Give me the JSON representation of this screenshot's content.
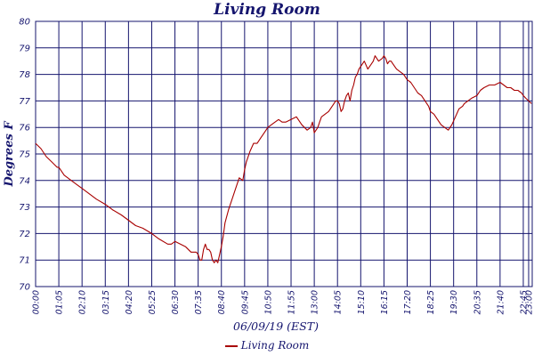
{
  "chart_data": {
    "type": "line",
    "title": "Living Room",
    "xlabel": "06/09/19 (EST)",
    "ylabel": "Degrees F",
    "ylim": [
      70,
      80
    ],
    "y_ticks": [
      "70",
      "71",
      "72",
      "73",
      "74",
      "75",
      "76",
      "77",
      "78",
      "79",
      "80"
    ],
    "x_tick_labels": [
      "00:00",
      "01:05",
      "02:10",
      "03:15",
      "04:20",
      "05:25",
      "06:30",
      "07:35",
      "08:40",
      "09:45",
      "10:50",
      "11:55",
      "13:00",
      "14:05",
      "15:10",
      "16:15",
      "17:20",
      "18:25",
      "19:30",
      "20:35",
      "21:40",
      "22:45",
      "23:00"
    ],
    "x_tick_minutes": [
      0,
      65,
      130,
      195,
      260,
      325,
      390,
      455,
      520,
      585,
      650,
      715,
      780,
      845,
      910,
      975,
      1040,
      1105,
      1170,
      1235,
      1300,
      1365,
      1380
    ],
    "x_range_minutes": [
      0,
      1390
    ],
    "grid": true,
    "legend_position": "bottom-center",
    "colors": {
      "series": "#a80000",
      "grid": "#15156e",
      "text": "#15156e"
    },
    "series": [
      {
        "name": "Living Room",
        "x_minutes": [
          0,
          15,
          30,
          45,
          60,
          65,
          80,
          100,
          120,
          130,
          150,
          170,
          195,
          215,
          240,
          260,
          280,
          300,
          325,
          345,
          370,
          380,
          390,
          405,
          420,
          435,
          450,
          455,
          460,
          465,
          470,
          475,
          480,
          485,
          490,
          495,
          500,
          505,
          510,
          515,
          520,
          525,
          530,
          540,
          550,
          560,
          570,
          580,
          585,
          590,
          600,
          610,
          615,
          620,
          630,
          640,
          650,
          660,
          670,
          680,
          690,
          700,
          715,
          730,
          745,
          760,
          770,
          775,
          780,
          785,
          790,
          795,
          800,
          810,
          820,
          830,
          840,
          845,
          850,
          855,
          860,
          865,
          870,
          875,
          880,
          885,
          890,
          895,
          900,
          905,
          910,
          915,
          920,
          930,
          940,
          945,
          950,
          955,
          960,
          970,
          975,
          980,
          985,
          990,
          995,
          1000,
          1010,
          1020,
          1030,
          1040,
          1050,
          1060,
          1070,
          1080,
          1090,
          1100,
          1105,
          1115,
          1125,
          1135,
          1145,
          1155,
          1165,
          1175,
          1185,
          1195,
          1200,
          1210,
          1220,
          1235,
          1245,
          1255,
          1270,
          1285,
          1300,
          1310,
          1320,
          1330,
          1340,
          1350,
          1360,
          1365,
          1372,
          1380,
          1388
        ],
        "values": [
          75.4,
          75.2,
          74.9,
          74.7,
          74.5,
          74.5,
          74.2,
          74.0,
          73.8,
          73.7,
          73.5,
          73.3,
          73.1,
          72.9,
          72.7,
          72.5,
          72.3,
          72.2,
          72.0,
          71.8,
          71.6,
          71.6,
          71.7,
          71.6,
          71.5,
          71.3,
          71.3,
          71.2,
          71.0,
          71.0,
          71.4,
          71.6,
          71.4,
          71.4,
          71.3,
          71.0,
          70.9,
          71.0,
          70.9,
          71.2,
          71.5,
          71.9,
          72.4,
          72.9,
          73.3,
          73.7,
          74.1,
          74.0,
          74.4,
          74.7,
          75.1,
          75.4,
          75.4,
          75.4,
          75.6,
          75.8,
          76.0,
          76.1,
          76.2,
          76.3,
          76.2,
          76.2,
          76.3,
          76.4,
          76.1,
          75.9,
          76.0,
          76.2,
          75.8,
          75.9,
          76.0,
          76.2,
          76.4,
          76.5,
          76.6,
          76.8,
          77.0,
          77.0,
          76.9,
          76.6,
          76.7,
          77.0,
          77.2,
          77.3,
          77.0,
          77.4,
          77.6,
          77.9,
          78.0,
          78.2,
          78.3,
          78.4,
          78.5,
          78.2,
          78.4,
          78.5,
          78.7,
          78.6,
          78.5,
          78.6,
          78.7,
          78.6,
          78.4,
          78.5,
          78.5,
          78.4,
          78.2,
          78.1,
          78.0,
          77.8,
          77.7,
          77.5,
          77.3,
          77.2,
          77.0,
          76.8,
          76.6,
          76.5,
          76.3,
          76.1,
          76.0,
          75.9,
          76.1,
          76.4,
          76.7,
          76.8,
          76.9,
          77.0,
          77.1,
          77.2,
          77.4,
          77.5,
          77.6,
          77.6,
          77.7,
          77.6,
          77.5,
          77.5,
          77.4,
          77.4,
          77.3,
          77.2,
          77.1,
          77.0,
          76.9
        ]
      }
    ]
  }
}
